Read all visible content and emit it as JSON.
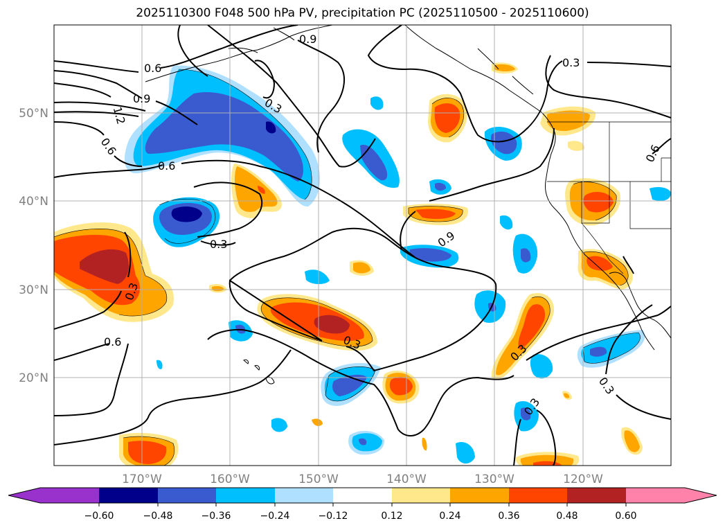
{
  "title": "2025110300 F048 500 hPa PV, precipitation PC (2025110500 - 2025110600)",
  "map": {
    "lon_range": [
      -180,
      -110
    ],
    "lat_range": [
      10,
      60
    ],
    "lat_ticks": [
      {
        "value": 20,
        "label": "20°N"
      },
      {
        "value": 30,
        "label": "30°N"
      },
      {
        "value": 40,
        "label": "40°N"
      },
      {
        "value": 50,
        "label": "50°N"
      }
    ],
    "lon_ticks": [
      {
        "value": -170,
        "label": "170°W"
      },
      {
        "value": -160,
        "label": "160°W"
      },
      {
        "value": -150,
        "label": "150°W"
      },
      {
        "value": -140,
        "label": "140°W"
      },
      {
        "value": -130,
        "label": "130°W"
      },
      {
        "value": -120,
        "label": "120°W"
      }
    ],
    "grid": true,
    "pv_contour_labels": [
      {
        "text": "0.9",
        "lon": -149.5,
        "lat": 58.6
      },
      {
        "text": "0.6",
        "lon": -169.5,
        "lat": 54.4
      },
      {
        "text": "0.9",
        "lon": -170,
        "lat": 51.3
      },
      {
        "text": "1.2",
        "lon": -178,
        "lat": 49.9
      },
      {
        "text": "0.3",
        "lon": -153.5,
        "lat": 51.1
      },
      {
        "text": "0.6",
        "lon": -176,
        "lat": 45.4
      },
      {
        "text": "0.6",
        "lon": -167,
        "lat": 43.8
      },
      {
        "text": "0.3",
        "lon": -162.5,
        "lat": 35.0
      },
      {
        "text": "0.3",
        "lon": -178,
        "lat": 29.4
      },
      {
        "text": "0.6",
        "lon": -176.5,
        "lat": 23.7
      },
      {
        "text": "0.3",
        "lon": -148.5,
        "lat": 23.3
      },
      {
        "text": "0.9",
        "lon": -134.5,
        "lat": 36.1
      },
      {
        "text": "0.3",
        "lon": -129.5,
        "lat": 22.9
      },
      {
        "text": "0.3",
        "lon": -125.5,
        "lat": 16.7
      },
      {
        "text": "0.3",
        "lon": -120,
        "lat": 55.8
      },
      {
        "text": "0.6",
        "lon": -111.3,
        "lat": 44.5
      },
      {
        "text": "0.3",
        "lon": -117.7,
        "lat": 18.9
      }
    ]
  },
  "colorbar": {
    "tick_labels": [
      "−0.60",
      "−0.48",
      "−0.36",
      "−0.24",
      "−0.12",
      "0.12",
      "0.24",
      "0.36",
      "0.48",
      "0.60"
    ],
    "colors": [
      "#9932cc",
      "#00008b",
      "#3a5bd0",
      "#00bfff",
      "#b0e0ff",
      "#ffffff",
      "#ffe88c",
      "#ffa500",
      "#ff4500",
      "#b22222",
      "#ff82ab"
    ]
  },
  "precip_colors": {
    "neg_weak": "#b0e0ff",
    "neg_mid": "#00bfff",
    "neg_strong": "#3a5bd0",
    "neg_max": "#00008b",
    "pos_weak": "#ffe88c",
    "pos_mid": "#ffa500",
    "pos_strong": "#ff4500",
    "pos_max": "#b22222"
  }
}
